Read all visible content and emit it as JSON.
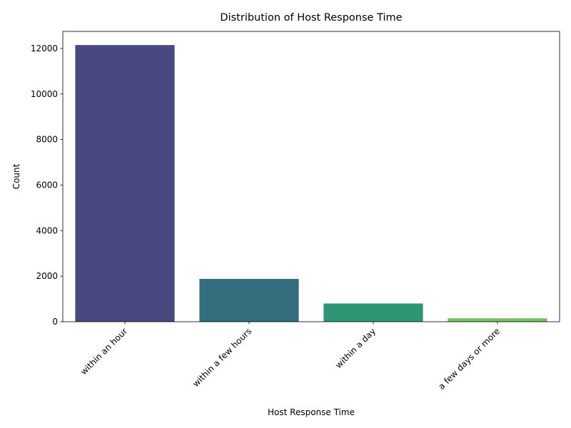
{
  "chart_data": {
    "type": "bar",
    "title": "Distribution of Host Response Time",
    "xlabel": "Host Response Time",
    "ylabel": "Count",
    "categories": [
      "within an hour",
      "within a few hours",
      "within a day",
      "a few days or more"
    ],
    "values": [
      12150,
      1880,
      800,
      150
    ],
    "ylim": [
      0,
      12750
    ],
    "yticks": [
      0,
      2000,
      4000,
      6000,
      8000,
      10000,
      12000
    ],
    "colors": [
      "#48497e",
      "#336d7e",
      "#2e9674",
      "#76c158"
    ],
    "grid": false,
    "x_tick_rotation": 45
  }
}
